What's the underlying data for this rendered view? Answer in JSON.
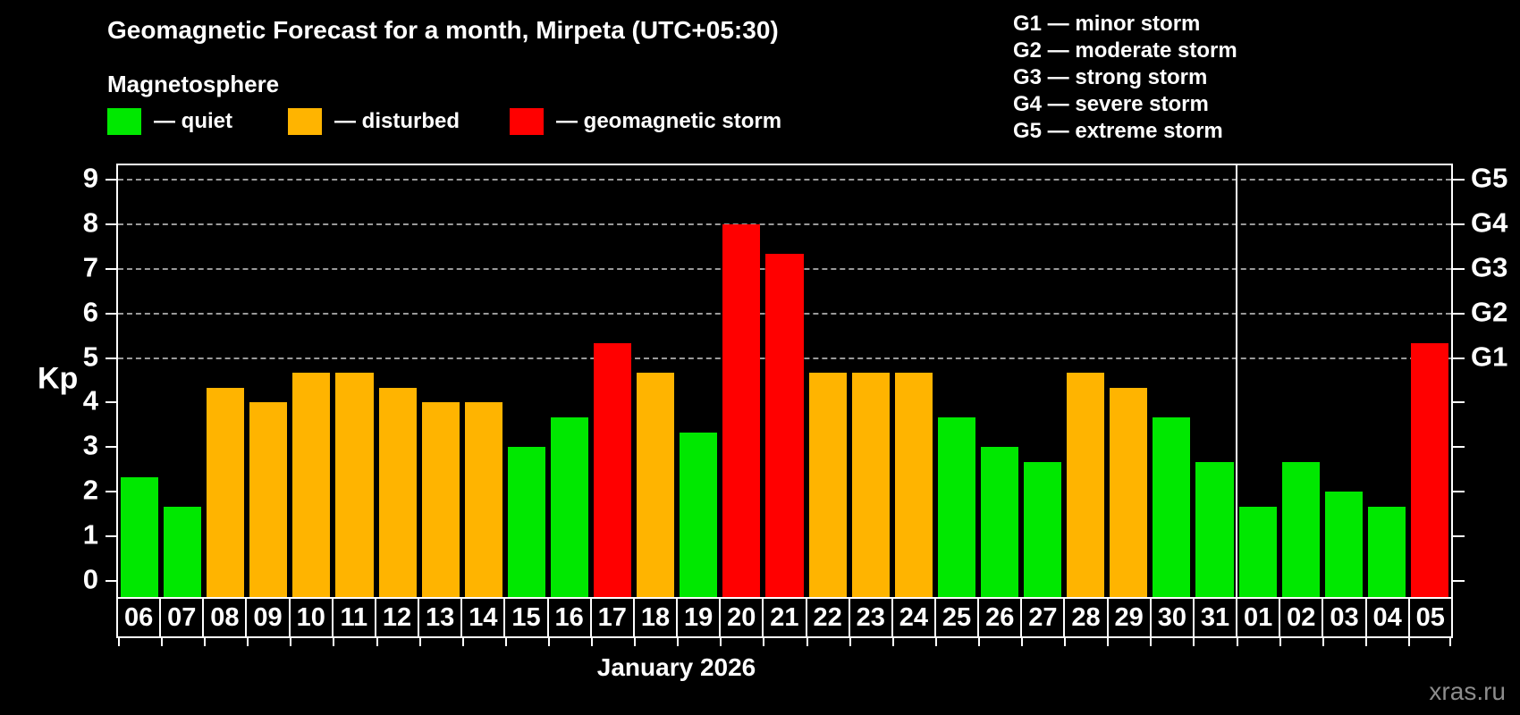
{
  "header": {
    "title": "Geomagnetic Forecast for a month, Mirpeta (UTC+05:30)",
    "subtitle": "Magnetosphere"
  },
  "legend": {
    "quiet_label": "— quiet",
    "disturbed_label": "— disturbed",
    "storm_label": "— geomagnetic storm"
  },
  "g_scale_legend": [
    "G1 — minor storm",
    "G2 — moderate storm",
    "G3 — strong storm",
    "G4 — severe storm",
    "G5 — extreme storm"
  ],
  "colors": {
    "quiet": "#00e800",
    "disturbed": "#ffb400",
    "storm": "#ff0000",
    "grid": "#9a9a9a",
    "axis": "#ffffff",
    "watermark": "#8c8c8c"
  },
  "axis": {
    "y_label": "Kp",
    "y_ticks": [
      "0",
      "1",
      "2",
      "3",
      "4",
      "5",
      "6",
      "7",
      "8",
      "9"
    ],
    "g_ticks": [
      {
        "kp": 5,
        "label": "G1"
      },
      {
        "kp": 6,
        "label": "G2"
      },
      {
        "kp": 7,
        "label": "G3"
      },
      {
        "kp": 8,
        "label": "G4"
      },
      {
        "kp": 9,
        "label": "G5"
      }
    ]
  },
  "footer": {
    "month_label": "January 2026",
    "watermark": "xras.ru"
  },
  "chart_data": {
    "type": "bar",
    "title": "Geomagnetic Forecast for a month, Mirpeta (UTC+05:30)",
    "xlabel": "January 2026",
    "ylabel": "Kp",
    "ylim": [
      0,
      9
    ],
    "gridlines_at": [
      5,
      6,
      7,
      8,
      9
    ],
    "grid": "dashed-horizontal",
    "legend_position": "top-left",
    "categories": [
      "06",
      "07",
      "08",
      "09",
      "10",
      "11",
      "12",
      "13",
      "14",
      "15",
      "16",
      "17",
      "18",
      "19",
      "20",
      "21",
      "22",
      "23",
      "24",
      "25",
      "26",
      "27",
      "28",
      "29",
      "30",
      "31",
      "01",
      "02",
      "03",
      "04",
      "05"
    ],
    "values": [
      2.33,
      1.67,
      4.33,
      4.0,
      4.67,
      4.67,
      4.33,
      4.0,
      4.0,
      3.0,
      3.67,
      5.33,
      4.67,
      3.33,
      8.0,
      7.33,
      4.67,
      4.67,
      4.67,
      3.67,
      3.0,
      2.67,
      4.67,
      4.33,
      3.67,
      2.67,
      1.67,
      2.67,
      2.0,
      1.67,
      5.33
    ],
    "status": [
      "quiet",
      "quiet",
      "disturbed",
      "disturbed",
      "disturbed",
      "disturbed",
      "disturbed",
      "disturbed",
      "disturbed",
      "quiet",
      "quiet",
      "storm",
      "disturbed",
      "quiet",
      "storm",
      "storm",
      "disturbed",
      "disturbed",
      "disturbed",
      "quiet",
      "quiet",
      "quiet",
      "disturbed",
      "disturbed",
      "quiet",
      "quiet",
      "quiet",
      "quiet",
      "quiet",
      "quiet",
      "storm"
    ],
    "month_separator_after_index": 25
  }
}
